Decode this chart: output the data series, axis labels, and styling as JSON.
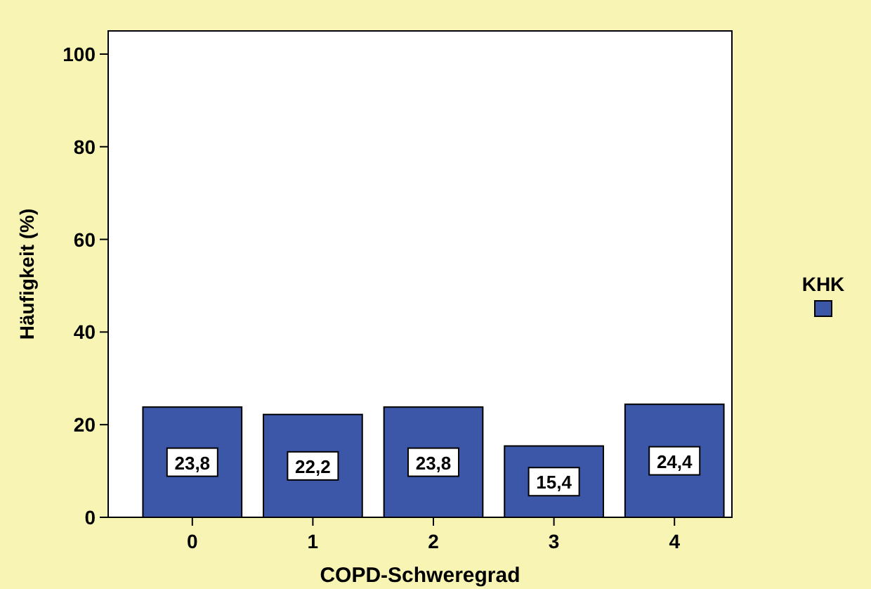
{
  "chart_data": {
    "type": "bar",
    "xlabel": "COPD-Schweregrad",
    "ylabel": "Häufigkeit (%)",
    "categories": [
      "0",
      "1",
      "2",
      "3",
      "4"
    ],
    "series": [
      {
        "name": "KHK",
        "color": "#3c57a8",
        "values": [
          23.8,
          22.2,
          23.8,
          15.4,
          24.4
        ],
        "value_labels": [
          "23,8",
          "22,2",
          "23,8",
          "15,4",
          "24,4"
        ]
      }
    ],
    "ylim": [
      0,
      105
    ],
    "yticks": [
      0,
      20,
      40,
      60,
      80,
      100
    ],
    "grid": false,
    "legend": "right"
  }
}
